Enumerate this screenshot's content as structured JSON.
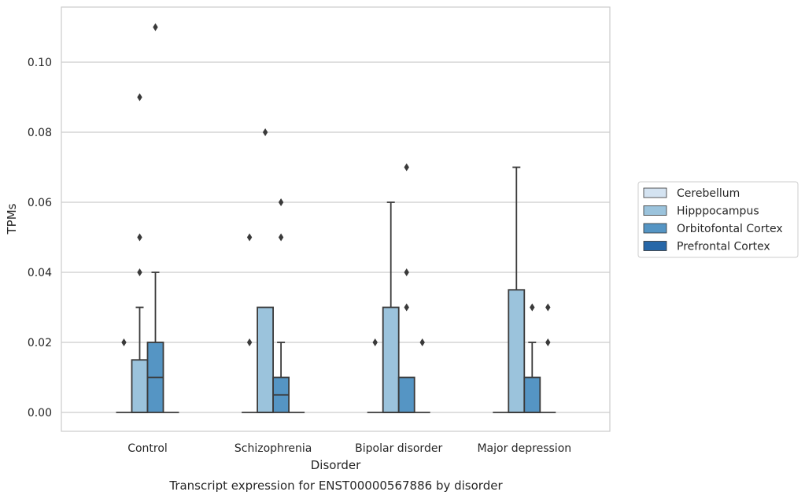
{
  "chart_data": {
    "type": "box",
    "title": "",
    "caption": "Transcript expression for ENST00000567886 by disorder",
    "xlabel": "Disorder",
    "ylabel": "TPMs",
    "ylim": [
      -0.0055,
      0.1165
    ],
    "yticks": [
      0.0,
      0.02,
      0.04,
      0.06,
      0.08,
      0.1
    ],
    "ytick_labels": [
      "0.00",
      "0.02",
      "0.04",
      "0.06",
      "0.08",
      "0.10"
    ],
    "grid": "horizontal",
    "legend_placement": "right-outside",
    "categories": [
      "Control",
      "Schizophrenia",
      "Bipolar disorder",
      "Major depression"
    ],
    "series": [
      {
        "name": "Cerebellum",
        "color": "#d4e3f1",
        "boxes": [
          {
            "q1": 0,
            "median": 0,
            "q3": 0,
            "whisker_low": 0,
            "whisker_high": 0,
            "outliers": []
          },
          {
            "q1": 0,
            "median": 0,
            "q3": 0,
            "whisker_low": 0,
            "whisker_high": 0,
            "outliers": []
          },
          {
            "q1": 0,
            "median": 0,
            "q3": 0,
            "whisker_low": 0,
            "whisker_high": 0,
            "outliers": []
          },
          {
            "q1": 0,
            "median": 0,
            "q3": 0,
            "whisker_low": 0,
            "whisker_high": 0,
            "outliers": []
          }
        ]
      },
      {
        "name": "Hipppocampus",
        "color": "#9bc3dc",
        "boxes": [
          {
            "q1": 0,
            "median": 0,
            "q3": 0.015,
            "whisker_low": 0,
            "whisker_high": 0.03,
            "outliers": [
              0.09,
              0.05,
              0.04
            ]
          },
          {
            "q1": 0,
            "median": 0,
            "q3": 0.03,
            "whisker_low": 0,
            "whisker_high": 0.03,
            "outliers": []
          },
          {
            "q1": 0,
            "median": 0,
            "q3": 0.03,
            "whisker_low": 0,
            "whisker_high": 0.06,
            "outliers": []
          },
          {
            "q1": 0,
            "median": 0,
            "q3": 0.035,
            "whisker_low": 0,
            "whisker_high": 0.07,
            "outliers": []
          }
        ]
      },
      {
        "name": "Orbitofontal Cortex",
        "color": "#5595c4",
        "boxes": [
          {
            "q1": 0,
            "median": 0.01,
            "q3": 0.02,
            "whisker_low": 0,
            "whisker_high": 0.04,
            "outliers": [
              0.11
            ]
          },
          {
            "q1": 0,
            "median": 0.005,
            "q3": 0.01,
            "whisker_low": 0,
            "whisker_high": 0.02,
            "outliers": [
              0.06,
              0.05
            ]
          },
          {
            "q1": 0,
            "median": 0,
            "q3": 0.01,
            "whisker_low": 0,
            "whisker_high": 0.01,
            "outliers": [
              0.07,
              0.04,
              0.03
            ]
          },
          {
            "q1": 0,
            "median": 0,
            "q3": 0.01,
            "whisker_low": 0,
            "whisker_high": 0.02,
            "outliers": [
              0.03
            ]
          }
        ]
      },
      {
        "name": "Prefrontal Cortex",
        "color": "#2767a8",
        "boxes": [
          {
            "q1": 0,
            "median": 0,
            "q3": 0,
            "whisker_low": 0,
            "whisker_high": 0,
            "outliers": []
          },
          {
            "q1": 0,
            "median": 0,
            "q3": 0,
            "whisker_low": 0,
            "whisker_high": 0,
            "outliers": []
          },
          {
            "q1": 0,
            "median": 0,
            "q3": 0,
            "whisker_low": 0,
            "whisker_high": 0,
            "outliers": []
          },
          {
            "q1": 0,
            "median": 0,
            "q3": 0,
            "whisker_low": 0,
            "whisker_high": 0,
            "outliers": []
          }
        ]
      }
    ],
    "extra_outliers": [
      {
        "category": 0,
        "slot": 0.5,
        "value": 0.02
      },
      {
        "category": 1,
        "slot": 0.5,
        "value": 0.05
      },
      {
        "category": 1,
        "slot": 0.5,
        "value": 0.02
      },
      {
        "category": 1,
        "slot": 1.5,
        "value": 0.08
      },
      {
        "category": 2,
        "slot": 0.5,
        "value": 0.02
      },
      {
        "category": 2,
        "slot": 3.5,
        "value": 0.02
      },
      {
        "category": 3,
        "slot": 3.5,
        "value": 0.03
      },
      {
        "category": 3,
        "slot": 3.5,
        "value": 0.02
      }
    ]
  }
}
